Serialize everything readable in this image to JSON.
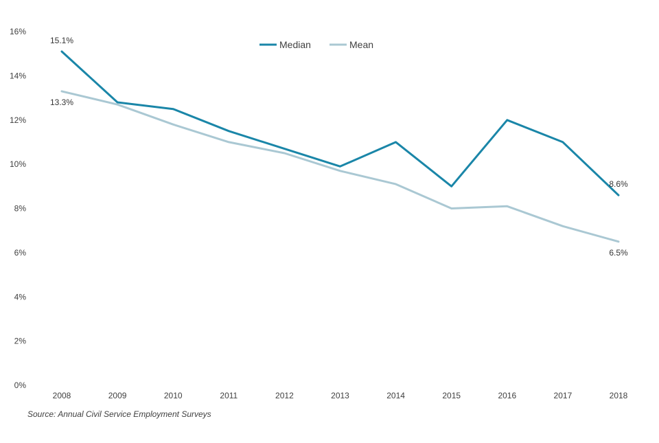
{
  "chart_data": {
    "type": "line",
    "title": "",
    "xlabel": "",
    "ylabel": "",
    "categories": [
      "2008",
      "2009",
      "2010",
      "2011",
      "2012",
      "2013",
      "2014",
      "2015",
      "2016",
      "2017",
      "2018"
    ],
    "ylim": [
      0,
      16
    ],
    "yticks": [
      0,
      2,
      4,
      6,
      8,
      10,
      12,
      14,
      16
    ],
    "ytick_labels": [
      "0%",
      "2%",
      "4%",
      "6%",
      "8%",
      "10%",
      "12%",
      "14%",
      "16%"
    ],
    "grid": false,
    "legend": "top-center",
    "series": [
      {
        "name": "Median",
        "color": "#1a86a8",
        "values": [
          15.1,
          12.8,
          12.5,
          11.5,
          10.7,
          9.9,
          11.0,
          9.0,
          12.0,
          11.0,
          8.6
        ]
      },
      {
        "name": "Mean",
        "color": "#aac8d3",
        "values": [
          13.3,
          12.7,
          11.8,
          11.0,
          10.5,
          9.7,
          9.1,
          8.0,
          8.1,
          7.2,
          6.5
        ]
      }
    ],
    "annotations": [
      {
        "series": 0,
        "index": 0,
        "text": "15.1%",
        "placement": "above"
      },
      {
        "series": 1,
        "index": 0,
        "text": "13.3%",
        "placement": "below"
      },
      {
        "series": 0,
        "index": 10,
        "text": "8.6%",
        "placement": "above"
      },
      {
        "series": 1,
        "index": 10,
        "text": "6.5%",
        "placement": "below"
      }
    ]
  },
  "source": "Source: Annual Civil Service Employment Surveys"
}
